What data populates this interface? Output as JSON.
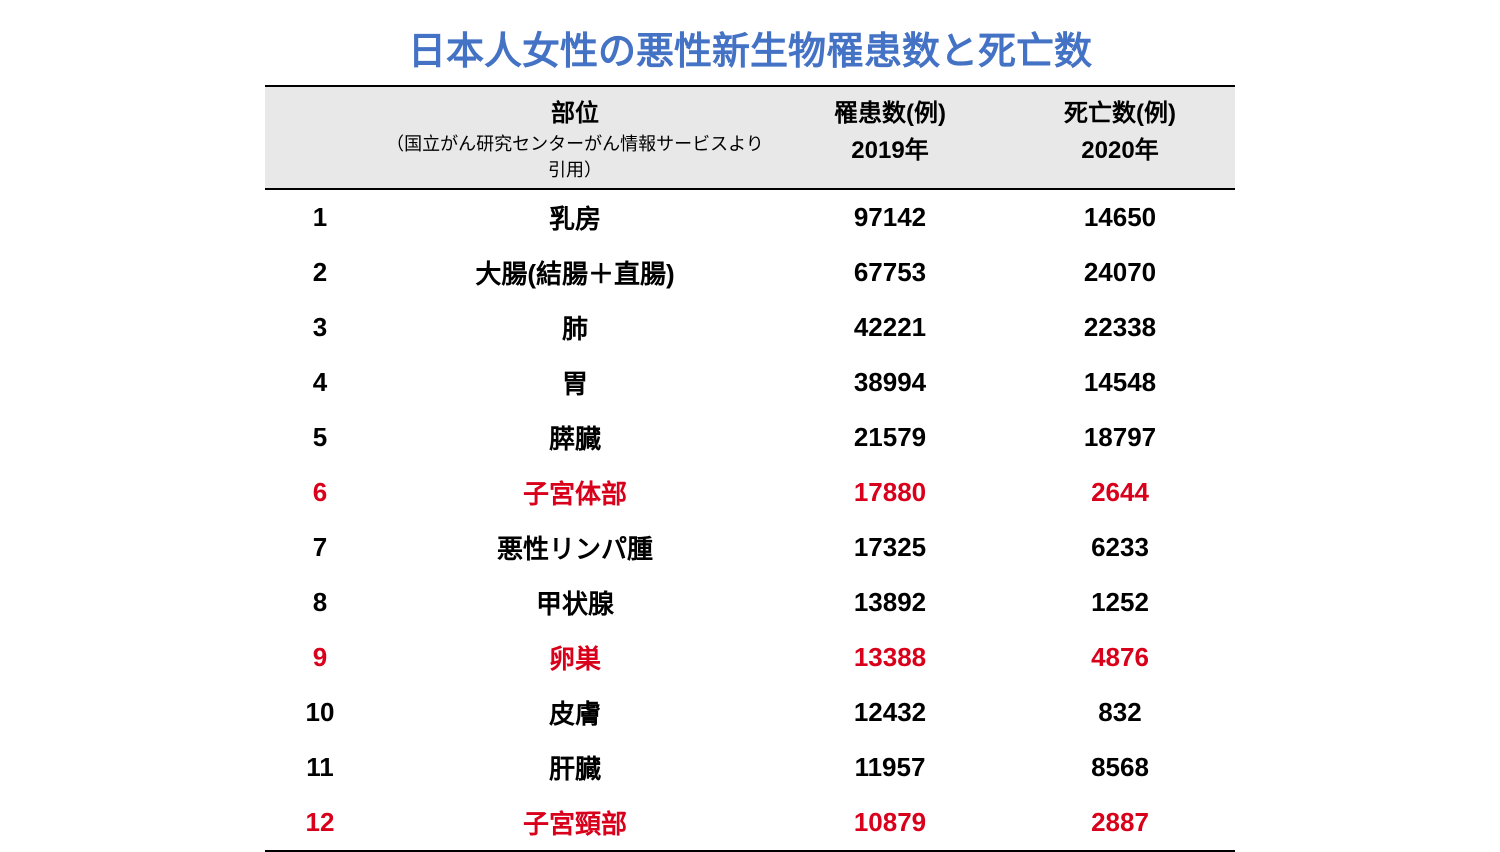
{
  "title": "日本人女性の悪性新生物罹患数と死亡数",
  "table": {
    "type": "table",
    "background_color": "#ffffff",
    "title_color": "#4472c4",
    "title_fontsize": 38,
    "header_bg": "#e8e8e8",
    "header_border_color": "#000000",
    "body_text_color": "#000000",
    "highlight_color": "#d9001b",
    "body_fontsize": 26,
    "header_fontsize": 24,
    "header_sub_fontsize": 18,
    "columns": [
      {
        "top": "",
        "sub": ""
      },
      {
        "top": "部位",
        "sub": "（国立がん研究センターがん情報サービスより引用）"
      },
      {
        "top": "罹患数(例)",
        "sub": "2019年"
      },
      {
        "top": "死亡数(例)",
        "sub": "2020年"
      }
    ],
    "rows": [
      {
        "rank": "1",
        "site": "乳房",
        "incidence": "97142",
        "deaths": "14650",
        "highlight": false
      },
      {
        "rank": "2",
        "site": "大腸(結腸＋直腸)",
        "incidence": "67753",
        "deaths": "24070",
        "highlight": false
      },
      {
        "rank": "3",
        "site": "肺",
        "incidence": "42221",
        "deaths": "22338",
        "highlight": false
      },
      {
        "rank": "4",
        "site": "胃",
        "incidence": "38994",
        "deaths": "14548",
        "highlight": false
      },
      {
        "rank": "5",
        "site": "膵臓",
        "incidence": "21579",
        "deaths": "18797",
        "highlight": false
      },
      {
        "rank": "6",
        "site": "子宮体部",
        "incidence": "17880",
        "deaths": "2644",
        "highlight": true
      },
      {
        "rank": "7",
        "site": "悪性リンパ腫",
        "incidence": "17325",
        "deaths": "6233",
        "highlight": false
      },
      {
        "rank": "8",
        "site": "甲状腺",
        "incidence": "13892",
        "deaths": "1252",
        "highlight": false
      },
      {
        "rank": "9",
        "site": "卵巣",
        "incidence": "13388",
        "deaths": "4876",
        "highlight": true
      },
      {
        "rank": "10",
        "site": "皮膚",
        "incidence": "12432",
        "deaths": "832",
        "highlight": false
      },
      {
        "rank": "11",
        "site": "肝臓",
        "incidence": "11957",
        "deaths": "8568",
        "highlight": false
      },
      {
        "rank": "12",
        "site": "子宮頸部",
        "incidence": "10879",
        "deaths": "2887",
        "highlight": true
      }
    ]
  }
}
